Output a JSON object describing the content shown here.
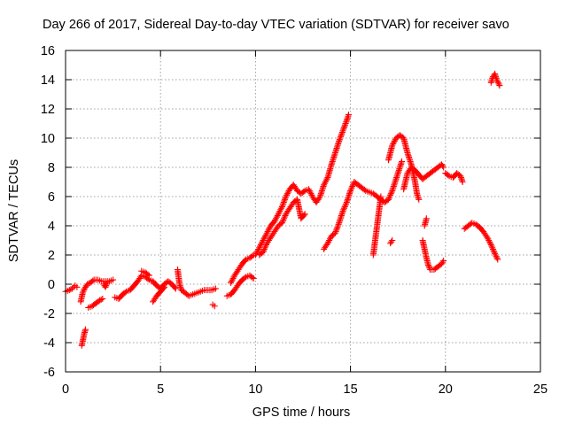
{
  "chart_data": {
    "type": "scatter",
    "title": "Day 266 of 2017, Sidereal Day-to-day VTEC variation (SDTVAR) for receiver savo",
    "xlabel": "GPS time / hours",
    "ylabel": "SDTVAR / TECUs",
    "xlim": [
      0,
      25
    ],
    "ylim": [
      -6,
      16
    ],
    "xticks": [
      0,
      5,
      10,
      15,
      20,
      25
    ],
    "yticks": [
      -6,
      -4,
      -2,
      0,
      2,
      4,
      6,
      8,
      10,
      12,
      14,
      16
    ],
    "grid": true,
    "marker": "plus",
    "color": "#ff0000",
    "series": [
      {
        "name": "SDTVAR",
        "segments": [
          [
            [
              0.0,
              -0.5
            ],
            [
              0.2,
              -0.4
            ],
            [
              0.35,
              -0.3
            ],
            [
              0.5,
              -0.1
            ],
            [
              0.6,
              -0.2
            ]
          ],
          [
            [
              0.8,
              -1.2
            ],
            [
              0.9,
              -0.6
            ],
            [
              1.0,
              -0.3
            ],
            [
              1.15,
              0.0
            ],
            [
              1.3,
              0.1
            ],
            [
              1.5,
              0.3
            ],
            [
              1.7,
              0.3
            ],
            [
              1.9,
              0.2
            ],
            [
              2.1,
              0.2
            ],
            [
              2.3,
              0.2
            ],
            [
              2.5,
              0.3
            ]
          ],
          [
            [
              0.85,
              -4.2
            ],
            [
              0.92,
              -3.8
            ],
            [
              0.98,
              -3.4
            ],
            [
              1.05,
              -3.1
            ]
          ],
          [
            [
              1.2,
              -1.6
            ],
            [
              1.4,
              -1.5
            ],
            [
              1.6,
              -1.3
            ],
            [
              1.8,
              -1.1
            ],
            [
              1.95,
              -1.0
            ]
          ],
          [
            [
              2.0,
              0.0
            ],
            [
              2.1,
              -0.2
            ],
            [
              2.2,
              0.1
            ]
          ],
          [
            [
              2.6,
              -0.9
            ],
            [
              2.8,
              -1.0
            ],
            [
              3.0,
              -0.7
            ],
            [
              3.2,
              -0.5
            ],
            [
              3.4,
              -0.4
            ],
            [
              3.6,
              -0.1
            ],
            [
              3.8,
              0.2
            ],
            [
              4.0,
              0.6
            ],
            [
              4.2,
              0.5
            ],
            [
              4.4,
              0.3
            ],
            [
              4.6,
              0.2
            ],
            [
              4.8,
              -0.1
            ],
            [
              5.0,
              -0.3
            ],
            [
              5.2,
              0.0
            ],
            [
              5.4,
              0.2
            ],
            [
              5.6,
              0.0
            ],
            [
              5.8,
              -0.3
            ]
          ],
          [
            [
              4.0,
              0.9
            ],
            [
              4.2,
              0.8
            ],
            [
              4.4,
              0.6
            ]
          ],
          [
            [
              4.6,
              -1.2
            ],
            [
              4.8,
              -0.8
            ],
            [
              5.0,
              -0.5
            ],
            [
              5.2,
              -0.2
            ]
          ],
          [
            [
              5.9,
              1.0
            ],
            [
              6.0,
              0.0
            ],
            [
              6.1,
              -0.4
            ],
            [
              6.3,
              -0.6
            ],
            [
              6.5,
              -0.8
            ],
            [
              6.7,
              -0.7
            ],
            [
              6.9,
              -0.6
            ],
            [
              7.1,
              -0.5
            ],
            [
              7.3,
              -0.4
            ],
            [
              7.5,
              -0.4
            ],
            [
              7.7,
              -0.4
            ],
            [
              7.9,
              -0.3
            ]
          ],
          [
            [
              7.75,
              -1.4
            ],
            [
              7.85,
              -1.5
            ]
          ],
          [
            [
              8.5,
              -0.8
            ],
            [
              8.7,
              -0.7
            ],
            [
              8.9,
              -0.4
            ],
            [
              9.1,
              0.0
            ],
            [
              9.3,
              0.3
            ],
            [
              9.5,
              0.5
            ],
            [
              9.7,
              0.6
            ],
            [
              9.9,
              0.4
            ]
          ],
          [
            [
              8.7,
              0.1
            ],
            [
              8.9,
              0.6
            ],
            [
              9.1,
              1.0
            ],
            [
              9.3,
              1.4
            ],
            [
              9.5,
              1.7
            ],
            [
              9.7,
              1.8
            ],
            [
              9.9,
              2.0
            ]
          ],
          [
            [
              10.0,
              2.0
            ],
            [
              10.2,
              2.5
            ],
            [
              10.4,
              3.0
            ],
            [
              10.6,
              3.5
            ],
            [
              10.8,
              4.0
            ],
            [
              11.0,
              4.3
            ],
            [
              11.2,
              4.8
            ],
            [
              11.4,
              5.3
            ],
            [
              11.6,
              6.0
            ],
            [
              11.8,
              6.5
            ],
            [
              12.0,
              6.8
            ],
            [
              12.2,
              6.4
            ],
            [
              12.4,
              6.2
            ],
            [
              12.6,
              6.4
            ],
            [
              12.8,
              6.5
            ],
            [
              13.0,
              6.0
            ],
            [
              13.2,
              5.6
            ],
            [
              13.4,
              6.0
            ],
            [
              13.6,
              6.8
            ],
            [
              13.8,
              7.3
            ],
            [
              14.0,
              8.2
            ],
            [
              14.2,
              9.0
            ],
            [
              14.4,
              9.8
            ],
            [
              14.6,
              10.5
            ],
            [
              14.8,
              11.2
            ],
            [
              14.9,
              11.6
            ]
          ],
          [
            [
              10.2,
              2.0
            ],
            [
              10.4,
              2.2
            ],
            [
              10.6,
              2.8
            ],
            [
              10.8,
              3.2
            ],
            [
              11.0,
              3.6
            ],
            [
              11.2,
              4.0
            ],
            [
              11.4,
              4.2
            ],
            [
              11.6,
              4.8
            ],
            [
              11.8,
              5.2
            ],
            [
              12.0,
              5.6
            ],
            [
              12.2,
              5.8
            ],
            [
              12.4,
              4.5
            ],
            [
              12.6,
              4.8
            ]
          ],
          [
            [
              13.6,
              2.4
            ],
            [
              13.8,
              2.8
            ],
            [
              14.0,
              3.3
            ],
            [
              14.2,
              3.5
            ],
            [
              14.4,
              4.2
            ],
            [
              14.6,
              5.0
            ],
            [
              14.8,
              5.6
            ],
            [
              15.0,
              6.4
            ],
            [
              15.2,
              7.0
            ],
            [
              15.4,
              6.8
            ],
            [
              15.6,
              6.6
            ],
            [
              15.8,
              6.4
            ],
            [
              16.0,
              6.3
            ],
            [
              16.2,
              6.2
            ],
            [
              16.4,
              6.0
            ],
            [
              16.6,
              5.8
            ],
            [
              16.8,
              5.6
            ],
            [
              17.0,
              5.8
            ],
            [
              17.2,
              6.4
            ],
            [
              17.4,
              7.2
            ],
            [
              17.6,
              8.0
            ],
            [
              17.7,
              8.4
            ]
          ],
          [
            [
              16.2,
              2.0
            ],
            [
              16.3,
              3.0
            ],
            [
              16.4,
              4.0
            ],
            [
              16.5,
              5.0
            ],
            [
              16.6,
              6.0
            ]
          ],
          [
            [
              17.0,
              8.5
            ],
            [
              17.2,
              9.5
            ],
            [
              17.4,
              10.0
            ],
            [
              17.6,
              10.2
            ],
            [
              17.8,
              10.0
            ],
            [
              18.0,
              9.0
            ],
            [
              18.2,
              8.2
            ],
            [
              18.4,
              7.0
            ],
            [
              18.5,
              6.2
            ],
            [
              18.6,
              5.8
            ]
          ],
          [
            [
              17.1,
              2.8
            ],
            [
              17.2,
              3.0
            ]
          ],
          [
            [
              17.8,
              6.5
            ],
            [
              18.0,
              7.6
            ],
            [
              18.2,
              8.0
            ],
            [
              18.4,
              7.8
            ],
            [
              18.6,
              7.5
            ],
            [
              18.8,
              7.2
            ],
            [
              19.0,
              7.4
            ],
            [
              19.2,
              7.6
            ],
            [
              19.4,
              7.8
            ],
            [
              19.6,
              8.0
            ],
            [
              19.8,
              8.2
            ],
            [
              19.9,
              8.0
            ]
          ],
          [
            [
              18.8,
              3.0
            ],
            [
              18.9,
              2.4
            ],
            [
              19.0,
              1.8
            ],
            [
              19.1,
              1.3
            ],
            [
              19.2,
              1.0
            ],
            [
              19.4,
              1.0
            ],
            [
              19.6,
              1.2
            ],
            [
              19.8,
              1.4
            ],
            [
              19.9,
              1.6
            ]
          ],
          [
            [
              18.9,
              4.0
            ],
            [
              19.0,
              4.5
            ]
          ],
          [
            [
              20.0,
              7.6
            ],
            [
              20.2,
              7.4
            ],
            [
              20.4,
              7.3
            ],
            [
              20.6,
              7.6
            ],
            [
              20.8,
              7.4
            ],
            [
              20.9,
              7.0
            ]
          ],
          [
            [
              21.0,
              3.8
            ],
            [
              21.2,
              4.0
            ],
            [
              21.4,
              4.2
            ],
            [
              21.6,
              4.1
            ],
            [
              21.8,
              3.9
            ],
            [
              22.0,
              3.6
            ],
            [
              22.2,
              3.2
            ],
            [
              22.4,
              2.7
            ],
            [
              22.6,
              2.1
            ],
            [
              22.75,
              1.7
            ]
          ],
          [
            [
              22.4,
              13.8
            ],
            [
              22.5,
              14.2
            ],
            [
              22.6,
              14.4
            ],
            [
              22.7,
              14.0
            ],
            [
              22.85,
              13.6
            ]
          ]
        ]
      }
    ]
  }
}
